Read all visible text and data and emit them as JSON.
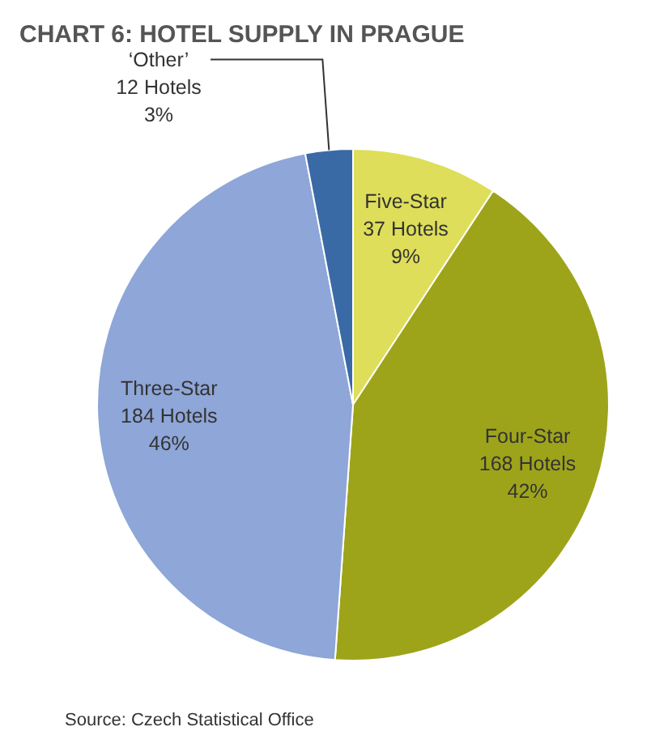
{
  "chart_data": {
    "type": "pie",
    "title": "CHART 6: HOTEL SUPPLY IN PRAGUE",
    "categories": [
      "Five-Star",
      "Four-Star",
      "Three-Star",
      "‘Other’"
    ],
    "values": [
      37,
      168,
      184,
      12
    ],
    "value_labels": [
      "37 Hotels\n9%",
      "168 Hotels\n42%",
      "184 Hotels\n46%",
      "12 Hotels\n3%"
    ],
    "colors": [
      "#dede5a",
      "#9ea41a",
      "#8ea6d8",
      "#3a6aa6"
    ],
    "annotations": [
      "Source: Czech Statistical Office"
    ]
  }
}
